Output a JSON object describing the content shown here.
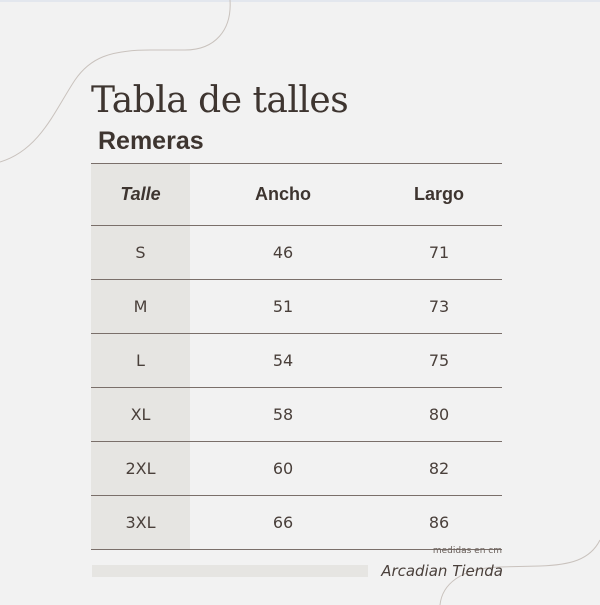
{
  "title": "Tabla de talles",
  "subtitle": "Remeras",
  "table": {
    "headers": [
      "Talle",
      "Ancho",
      "Largo"
    ],
    "rows": [
      [
        "S",
        "46",
        "71"
      ],
      [
        "M",
        "51",
        "73"
      ],
      [
        "L",
        "54",
        "75"
      ],
      [
        "XL",
        "58",
        "80"
      ],
      [
        "2XL",
        "60",
        "82"
      ],
      [
        "3XL",
        "66",
        "86"
      ]
    ]
  },
  "note": "medidas en cm",
  "brand": "Arcadian Tienda",
  "colors": {
    "background": "#f2f2f2",
    "text": "#3e3530",
    "shade": "#e6e5e2",
    "rule": "#7a6f6a"
  }
}
